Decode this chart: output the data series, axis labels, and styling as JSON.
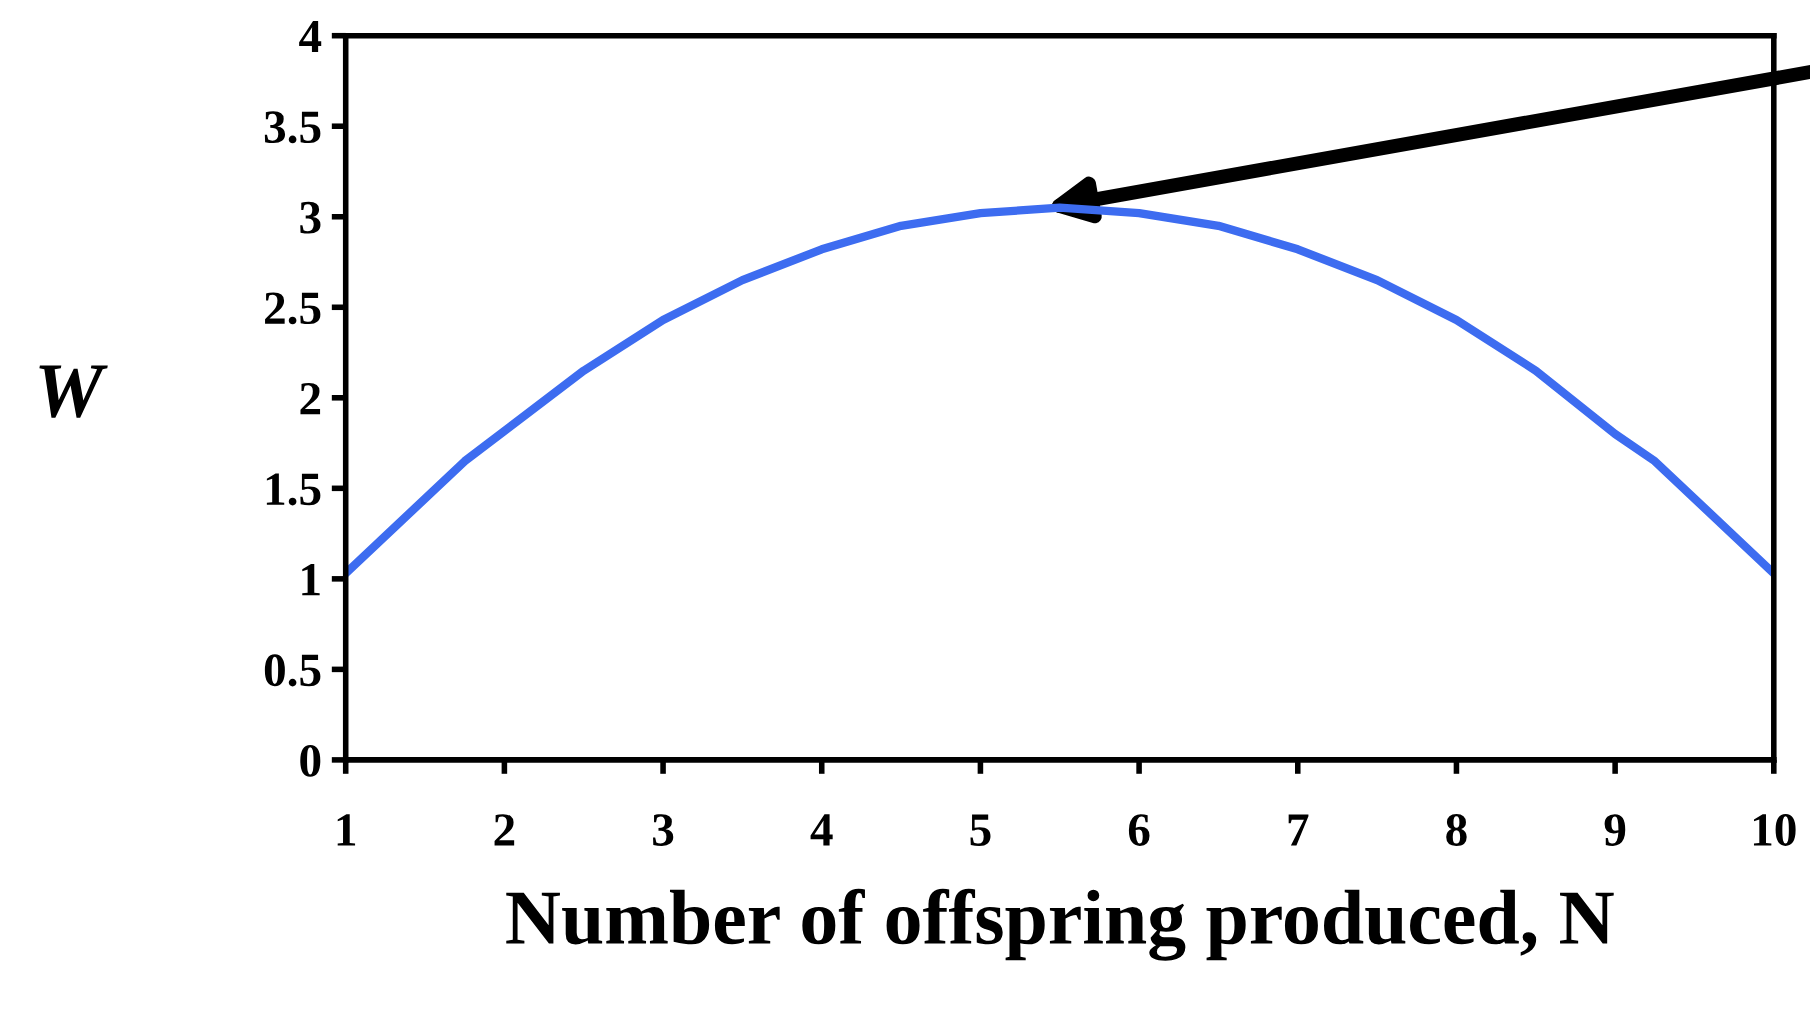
{
  "chart_data": {
    "type": "line",
    "xlabel": "Number of offspring produced, N",
    "ylabel": "W",
    "series": [
      {
        "color": "#3d6cf0",
        "x": [
          1,
          1.75,
          2.5,
          3,
          3.5,
          4,
          4.5,
          5,
          5.5,
          6,
          6.5,
          7,
          7.5,
          8,
          8.5,
          9,
          9.25,
          10
        ],
        "values": [
          1.03,
          1.65,
          2.15,
          2.43,
          2.65,
          2.82,
          2.95,
          3.02,
          3.05,
          3.02,
          2.95,
          2.82,
          2.65,
          2.43,
          2.15,
          1.8,
          1.65,
          1.03
        ]
      }
    ],
    "xlim": [
      1,
      10
    ],
    "xticks": [
      1,
      2,
      3,
      4,
      5,
      6,
      7,
      8,
      9,
      10
    ],
    "ylim": [
      0,
      4
    ],
    "yticks": [
      0,
      0.5,
      1,
      1.5,
      2,
      2.5,
      3,
      3.5,
      4
    ],
    "grid": false,
    "legend": false,
    "marker": "none",
    "line_style": "solid"
  }
}
